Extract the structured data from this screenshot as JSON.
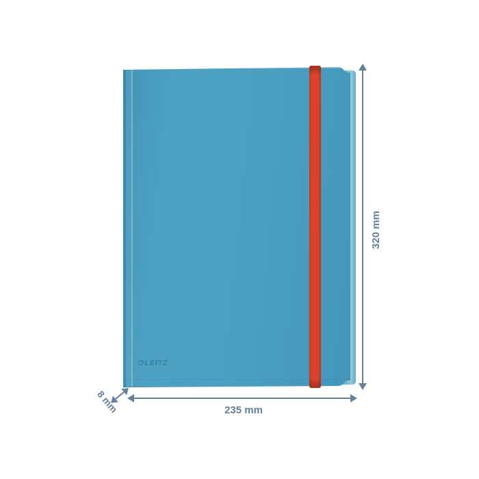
{
  "image": {
    "type": "product-dimension-diagram",
    "background": "#FFFFFF"
  },
  "product": {
    "kind": "folder with elastic band",
    "brand_mark": "Ɔ",
    "brand_name": "LEITZ",
    "colors": {
      "cover_blue": "#4A9EC0",
      "edge_light_blue": "#7DBDD2",
      "elastic_red": "#D8422B",
      "logo_emboss": "#2E7FA3"
    }
  },
  "dimensions": {
    "annotation_color": "#64809B",
    "height_label": "320 mm",
    "width_label": "235 mm",
    "depth_label": "8 mm"
  }
}
